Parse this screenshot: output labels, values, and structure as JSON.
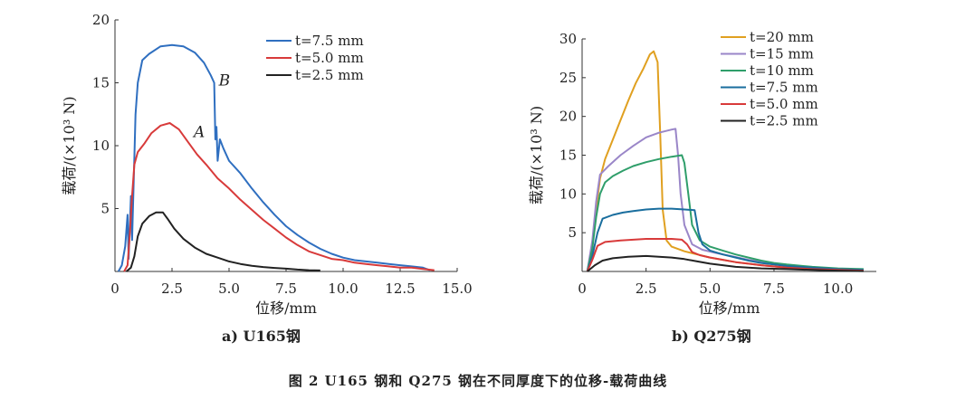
{
  "figure_caption": "图 2   U165 钢和 Q275 钢在不同厚度下的位移-载荷曲线",
  "chart_data": [
    {
      "type": "line",
      "caption": "a) U165钢",
      "xlabel": "位移/mm",
      "ylabel": "载荷/(×10³ N)",
      "xlim": [
        0,
        15
      ],
      "ylim": [
        0,
        20
      ],
      "xticks": [
        0,
        2.5,
        5.0,
        7.5,
        10.0,
        12.5,
        15.0
      ],
      "xtick_labels": [
        "0",
        "2.5",
        "5.0",
        "7.5",
        "10.0",
        "12.5",
        "15.0"
      ],
      "yticks": [
        5,
        10,
        15,
        20
      ],
      "ytick_labels": [
        "5",
        "10",
        "15",
        "20"
      ],
      "legend_position": "top-right",
      "grid": false,
      "annotations": [
        {
          "text": "B",
          "x": 4.55,
          "y": 14.8
        },
        {
          "text": "A",
          "x": 3.45,
          "y": 10.7
        }
      ],
      "series": [
        {
          "name": "t=7.5 mm",
          "color": "#2f6fc0",
          "points": [
            [
              0.15,
              0
            ],
            [
              0.3,
              0.5
            ],
            [
              0.45,
              2
            ],
            [
              0.55,
              4.5
            ],
            [
              0.6,
              1
            ],
            [
              0.7,
              6
            ],
            [
              0.75,
              2.5
            ],
            [
              0.85,
              9
            ],
            [
              0.9,
              12.5
            ],
            [
              1.0,
              15
            ],
            [
              1.2,
              16.8
            ],
            [
              1.5,
              17.3
            ],
            [
              2.0,
              17.9
            ],
            [
              2.5,
              18.0
            ],
            [
              3.0,
              17.9
            ],
            [
              3.5,
              17.4
            ],
            [
              3.9,
              16.6
            ],
            [
              4.2,
              15.6
            ],
            [
              4.35,
              15.0
            ],
            [
              4.4,
              10.5
            ],
            [
              4.45,
              11.5
            ],
            [
              4.5,
              8.8
            ],
            [
              4.6,
              10.5
            ],
            [
              4.75,
              9.8
            ],
            [
              5.0,
              8.8
            ],
            [
              5.5,
              7.8
            ],
            [
              6.0,
              6.6
            ],
            [
              6.5,
              5.5
            ],
            [
              7.0,
              4.5
            ],
            [
              7.5,
              3.6
            ],
            [
              8.0,
              2.9
            ],
            [
              8.5,
              2.3
            ],
            [
              9.0,
              1.8
            ],
            [
              9.5,
              1.4
            ],
            [
              10.0,
              1.1
            ],
            [
              10.5,
              0.9
            ],
            [
              11.0,
              0.8
            ],
            [
              11.5,
              0.7
            ],
            [
              12.0,
              0.6
            ],
            [
              12.5,
              0.5
            ],
            [
              13.0,
              0.4
            ],
            [
              13.5,
              0.3
            ],
            [
              13.8,
              0.1
            ]
          ]
        },
        {
          "name": "t=5.0 mm",
          "color": "#d83a3a",
          "points": [
            [
              0.4,
              0
            ],
            [
              0.55,
              0.5
            ],
            [
              0.65,
              3
            ],
            [
              0.75,
              6
            ],
            [
              0.85,
              8.5
            ],
            [
              1.0,
              9.5
            ],
            [
              1.3,
              10.2
            ],
            [
              1.6,
              11.0
            ],
            [
              2.0,
              11.6
            ],
            [
              2.4,
              11.8
            ],
            [
              2.8,
              11.3
            ],
            [
              3.2,
              10.3
            ],
            [
              3.6,
              9.3
            ],
            [
              4.0,
              8.5
            ],
            [
              4.5,
              7.4
            ],
            [
              5.0,
              6.6
            ],
            [
              5.5,
              5.7
            ],
            [
              6.0,
              4.9
            ],
            [
              6.5,
              4.1
            ],
            [
              7.0,
              3.4
            ],
            [
              7.5,
              2.7
            ],
            [
              8.0,
              2.1
            ],
            [
              8.5,
              1.6
            ],
            [
              9.0,
              1.3
            ],
            [
              9.5,
              1.0
            ],
            [
              10.0,
              0.9
            ],
            [
              10.5,
              0.7
            ],
            [
              11.0,
              0.6
            ],
            [
              11.5,
              0.5
            ],
            [
              12.0,
              0.4
            ],
            [
              12.5,
              0.3
            ],
            [
              13.0,
              0.3
            ],
            [
              13.5,
              0.2
            ],
            [
              14.0,
              0.1
            ]
          ]
        },
        {
          "name": "t=2.5 mm",
          "color": "#222222",
          "points": [
            [
              0.5,
              0
            ],
            [
              0.7,
              0.3
            ],
            [
              0.85,
              1.2
            ],
            [
              1.0,
              2.8
            ],
            [
              1.2,
              3.8
            ],
            [
              1.5,
              4.4
            ],
            [
              1.8,
              4.7
            ],
            [
              2.1,
              4.7
            ],
            [
              2.3,
              4.2
            ],
            [
              2.6,
              3.4
            ],
            [
              3.0,
              2.6
            ],
            [
              3.5,
              1.9
            ],
            [
              4.0,
              1.4
            ],
            [
              4.5,
              1.1
            ],
            [
              5.0,
              0.8
            ],
            [
              5.5,
              0.6
            ],
            [
              6.0,
              0.45
            ],
            [
              6.5,
              0.35
            ],
            [
              7.0,
              0.28
            ],
            [
              7.5,
              0.22
            ],
            [
              8.0,
              0.15
            ],
            [
              8.5,
              0.1
            ],
            [
              9.0,
              0.08
            ]
          ]
        }
      ]
    },
    {
      "type": "line",
      "caption": "b) Q275钢",
      "xlabel": "位移/mm",
      "ylabel": "载荷/(×10³ N)",
      "xlim": [
        0,
        11.5
      ],
      "ylim": [
        0,
        30
      ],
      "xticks": [
        0,
        2.5,
        5.0,
        7.5,
        10.0
      ],
      "xtick_labels": [
        "0",
        "2.5",
        "5.0",
        "7.5",
        "10.0"
      ],
      "yticks": [
        5,
        10,
        15,
        20,
        25,
        30
      ],
      "ytick_labels": [
        "5",
        "10",
        "15",
        "20",
        "25",
        "30"
      ],
      "legend_position": "top-right",
      "grid": false,
      "series": [
        {
          "name": "t=20 mm",
          "color": "#e0a020",
          "points": [
            [
              0.2,
              0
            ],
            [
              0.4,
              3
            ],
            [
              0.55,
              8
            ],
            [
              0.7,
              12
            ],
            [
              0.9,
              14.5
            ],
            [
              1.2,
              17
            ],
            [
              1.5,
              19.5
            ],
            [
              1.8,
              22
            ],
            [
              2.1,
              24.3
            ],
            [
              2.4,
              26.2
            ],
            [
              2.65,
              28
            ],
            [
              2.8,
              28.4
            ],
            [
              2.95,
              27
            ],
            [
              3.05,
              18
            ],
            [
              3.15,
              8
            ],
            [
              3.3,
              4
            ],
            [
              3.5,
              3.2
            ],
            [
              4.0,
              2.6
            ],
            [
              4.5,
              2.2
            ],
            [
              5.0,
              1.8
            ],
            [
              5.5,
              1.5
            ],
            [
              6.0,
              1.2
            ],
            [
              6.5,
              1.0
            ],
            [
              7.0,
              0.8
            ],
            [
              8.0,
              0.5
            ],
            [
              9.0,
              0.3
            ],
            [
              10.0,
              0.2
            ],
            [
              11.0,
              0.1
            ]
          ]
        },
        {
          "name": "t=15 mm",
          "color": "#9a86c8",
          "points": [
            [
              0.2,
              0
            ],
            [
              0.4,
              4
            ],
            [
              0.55,
              9
            ],
            [
              0.7,
              12.5
            ],
            [
              1.0,
              13.5
            ],
            [
              1.5,
              15
            ],
            [
              2.0,
              16.2
            ],
            [
              2.5,
              17.3
            ],
            [
              3.0,
              17.9
            ],
            [
              3.5,
              18.3
            ],
            [
              3.65,
              18.4
            ],
            [
              3.75,
              15
            ],
            [
              3.85,
              10
            ],
            [
              4.0,
              6
            ],
            [
              4.3,
              3.5
            ],
            [
              4.7,
              2.8
            ],
            [
              5.2,
              2.4
            ],
            [
              5.8,
              2.0
            ],
            [
              6.5,
              1.5
            ],
            [
              7.5,
              1.0
            ],
            [
              8.5,
              0.6
            ],
            [
              9.5,
              0.4
            ],
            [
              10.5,
              0.3
            ],
            [
              11.0,
              0.2
            ]
          ]
        },
        {
          "name": "t=10 mm",
          "color": "#2f9e6a",
          "points": [
            [
              0.2,
              0
            ],
            [
              0.4,
              3
            ],
            [
              0.55,
              7
            ],
            [
              0.7,
              10
            ],
            [
              0.9,
              11.5
            ],
            [
              1.2,
              12.3
            ],
            [
              1.6,
              13
            ],
            [
              2.0,
              13.6
            ],
            [
              2.5,
              14.1
            ],
            [
              3.0,
              14.5
            ],
            [
              3.5,
              14.8
            ],
            [
              3.9,
              15.0
            ],
            [
              4.0,
              14
            ],
            [
              4.15,
              10
            ],
            [
              4.3,
              6
            ],
            [
              4.6,
              4
            ],
            [
              5.0,
              3.2
            ],
            [
              5.5,
              2.7
            ],
            [
              6.0,
              2.2
            ],
            [
              6.5,
              1.8
            ],
            [
              7.0,
              1.4
            ],
            [
              7.5,
              1.1
            ],
            [
              8.0,
              0.9
            ],
            [
              9.0,
              0.6
            ],
            [
              10.0,
              0.4
            ],
            [
              11.0,
              0.3
            ]
          ]
        },
        {
          "name": "t=7.5 mm",
          "color": "#1a6e9e",
          "points": [
            [
              0.2,
              0
            ],
            [
              0.4,
              2
            ],
            [
              0.6,
              5
            ],
            [
              0.8,
              6.8
            ],
            [
              1.2,
              7.3
            ],
            [
              1.6,
              7.6
            ],
            [
              2.0,
              7.8
            ],
            [
              2.5,
              8.0
            ],
            [
              3.0,
              8.1
            ],
            [
              3.5,
              8.1
            ],
            [
              4.0,
              8.0
            ],
            [
              4.4,
              7.9
            ],
            [
              4.55,
              5
            ],
            [
              4.7,
              3.5
            ],
            [
              5.0,
              2.7
            ],
            [
              5.5,
              2.2
            ],
            [
              6.0,
              1.8
            ],
            [
              6.5,
              1.4
            ],
            [
              7.0,
              1.1
            ],
            [
              7.5,
              0.9
            ],
            [
              8.0,
              0.7
            ],
            [
              9.0,
              0.5
            ],
            [
              10.0,
              0.3
            ],
            [
              11.0,
              0.2
            ]
          ]
        },
        {
          "name": "t=5.0 mm",
          "color": "#d83a3a",
          "points": [
            [
              0.2,
              0
            ],
            [
              0.4,
              1.5
            ],
            [
              0.6,
              3.3
            ],
            [
              0.9,
              3.8
            ],
            [
              1.5,
              4.0
            ],
            [
              2.0,
              4.1
            ],
            [
              2.5,
              4.2
            ],
            [
              3.0,
              4.2
            ],
            [
              3.5,
              4.2
            ],
            [
              3.9,
              4.1
            ],
            [
              4.1,
              3.5
            ],
            [
              4.3,
              2.5
            ],
            [
              4.6,
              2.1
            ],
            [
              5.0,
              1.8
            ],
            [
              5.5,
              1.5
            ],
            [
              6.0,
              1.2
            ],
            [
              6.5,
              1.0
            ],
            [
              7.0,
              0.8
            ],
            [
              8.0,
              0.5
            ],
            [
              9.0,
              0.3
            ],
            [
              10.0,
              0.2
            ],
            [
              11.0,
              0.1
            ]
          ]
        },
        {
          "name": "t=2.5 mm",
          "color": "#222222",
          "points": [
            [
              0.2,
              0
            ],
            [
              0.5,
              0.8
            ],
            [
              0.8,
              1.4
            ],
            [
              1.2,
              1.7
            ],
            [
              1.8,
              1.9
            ],
            [
              2.5,
              2.0
            ],
            [
              3.0,
              1.9
            ],
            [
              3.5,
              1.8
            ],
            [
              4.0,
              1.6
            ],
            [
              4.5,
              1.3
            ],
            [
              5.0,
              1.0
            ],
            [
              5.5,
              0.8
            ],
            [
              6.0,
              0.6
            ],
            [
              7.0,
              0.4
            ],
            [
              8.0,
              0.3
            ],
            [
              9.0,
              0.2
            ],
            [
              10.0,
              0.1
            ],
            [
              11.0,
              0.05
            ]
          ]
        }
      ]
    }
  ]
}
